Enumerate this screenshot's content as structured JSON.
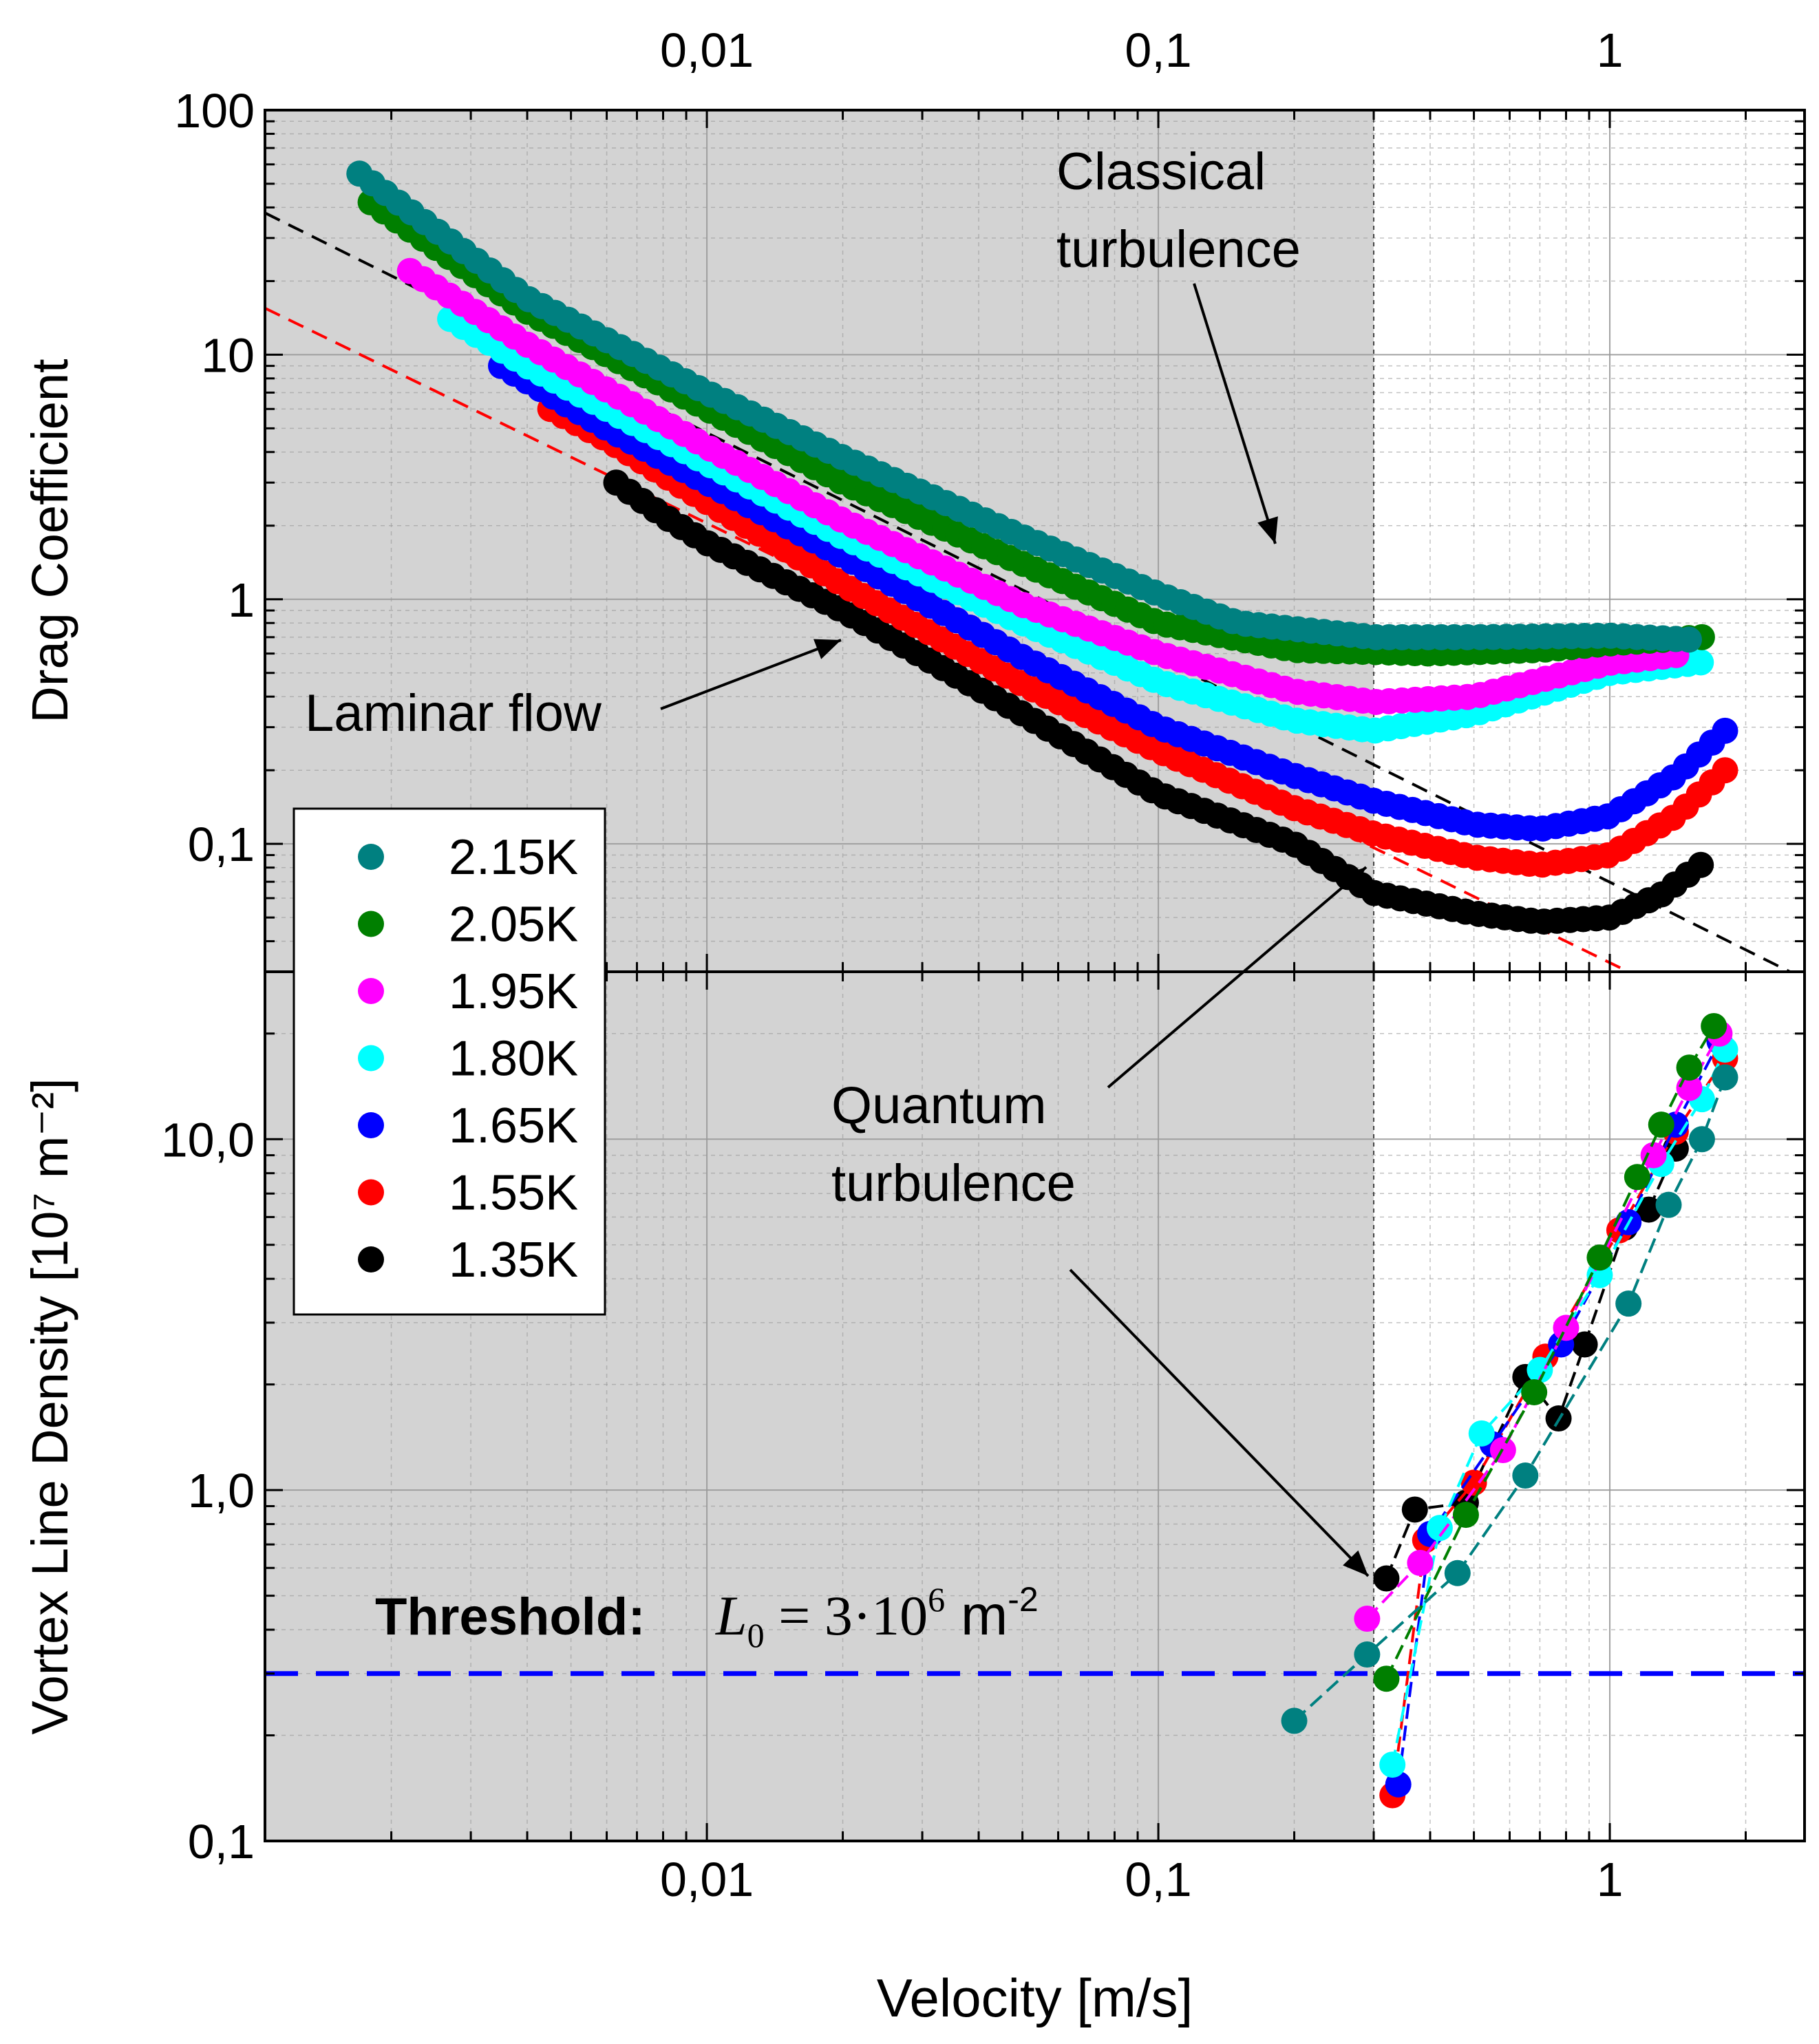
{
  "chart_data": [
    {
      "type": "scatter",
      "panel": "top",
      "ylabel": "Drag Coefficient",
      "xlabel": "",
      "xscale": "log",
      "yscale": "log",
      "xlim": [
        0.00105,
        2.7
      ],
      "ylim": [
        0.03,
        100
      ],
      "x_ticks": [
        {
          "v": 0.01,
          "label": "0,01"
        },
        {
          "v": 0.1,
          "label": "0,1"
        },
        {
          "v": 1,
          "label": "1"
        }
      ],
      "y_ticks": [
        {
          "v": 0.1,
          "label": "0,1"
        },
        {
          "v": 1,
          "label": "1"
        },
        {
          "v": 10,
          "label": "10"
        },
        {
          "v": 100,
          "label": "100"
        }
      ],
      "grid": true,
      "shaded_region_x": [
        0.00105,
        0.3
      ],
      "threshold_velocity": 0.3,
      "fit_lines": [
        {
          "color": "#000000",
          "points": [
            [
              0.00105,
              38
            ],
            [
              2.7,
              0.028
            ]
          ]
        },
        {
          "color": "#ff0000",
          "points": [
            [
              0.00105,
              15.5
            ],
            [
              1.1,
              0.03
            ]
          ]
        }
      ],
      "annotations": [
        {
          "text_lines": [
            "Classical",
            "turbulence"
          ]
        },
        {
          "text_lines": [
            "Laminar flow"
          ]
        }
      ],
      "series": [
        {
          "name": "2.15K",
          "color": "#008080",
          "line_points": [
            [
              0.0017,
              55
            ],
            [
              0.004,
              17
            ],
            [
              0.01,
              7
            ],
            [
              0.02,
              3.8
            ],
            [
              0.05,
              1.8
            ],
            [
              0.1,
              1.05
            ],
            [
              0.15,
              0.8
            ],
            [
              0.3,
              0.7
            ],
            [
              0.5,
              0.7
            ],
            [
              1,
              0.71
            ],
            [
              1.6,
              0.68
            ]
          ]
        },
        {
          "name": "2.05K",
          "color": "#007f00",
          "line_points": [
            [
              0.0018,
              42
            ],
            [
              0.004,
              15
            ],
            [
              0.01,
              6
            ],
            [
              0.02,
              3
            ],
            [
              0.05,
              1.4
            ],
            [
              0.1,
              0.8
            ],
            [
              0.2,
              0.62
            ],
            [
              0.4,
              0.6
            ],
            [
              0.7,
              0.62
            ],
            [
              1,
              0.66
            ],
            [
              1.6,
              0.7
            ]
          ]
        },
        {
          "name": "1.95K",
          "color": "#ff00ff",
          "line_points": [
            [
              0.0022,
              22
            ],
            [
              0.004,
              11
            ],
            [
              0.01,
              4.2
            ],
            [
              0.02,
              2.1
            ],
            [
              0.05,
              0.95
            ],
            [
              0.1,
              0.6
            ],
            [
              0.2,
              0.42
            ],
            [
              0.3,
              0.38
            ],
            [
              0.5,
              0.4
            ],
            [
              1,
              0.55
            ],
            [
              1.5,
              0.6
            ]
          ]
        },
        {
          "name": "1.80K",
          "color": "#00ffff",
          "line_points": [
            [
              0.0027,
              14
            ],
            [
              0.004,
              9
            ],
            [
              0.01,
              3.6
            ],
            [
              0.02,
              1.8
            ],
            [
              0.05,
              0.8
            ],
            [
              0.1,
              0.46
            ],
            [
              0.2,
              0.32
            ],
            [
              0.3,
              0.29
            ],
            [
              0.5,
              0.34
            ],
            [
              1,
              0.5
            ],
            [
              1.7,
              0.56
            ]
          ]
        },
        {
          "name": "1.65K",
          "color": "#0000ff",
          "line_points": [
            [
              0.0035,
              9
            ],
            [
              0.006,
              5
            ],
            [
              0.01,
              3
            ],
            [
              0.02,
              1.5
            ],
            [
              0.05,
              0.58
            ],
            [
              0.1,
              0.3
            ],
            [
              0.2,
              0.19
            ],
            [
              0.3,
              0.15
            ],
            [
              0.5,
              0.12
            ],
            [
              0.7,
              0.115
            ],
            [
              1,
              0.13
            ],
            [
              1.4,
              0.19
            ],
            [
              1.8,
              0.29
            ]
          ]
        },
        {
          "name": "1.55K",
          "color": "#ff0000",
          "line_points": [
            [
              0.0045,
              6
            ],
            [
              0.006,
              4.5
            ],
            [
              0.01,
              2.5
            ],
            [
              0.02,
              1.15
            ],
            [
              0.05,
              0.45
            ],
            [
              0.1,
              0.24
            ],
            [
              0.2,
              0.14
            ],
            [
              0.3,
              0.11
            ],
            [
              0.5,
              0.088
            ],
            [
              0.7,
              0.082
            ],
            [
              1,
              0.09
            ],
            [
              1.4,
              0.13
            ],
            [
              1.8,
              0.2
            ]
          ]
        },
        {
          "name": "1.35K",
          "color": "#000000",
          "line_points": [
            [
              0.0063,
              3
            ],
            [
              0.008,
              2.2
            ],
            [
              0.01,
              1.7
            ],
            [
              0.02,
              0.9
            ],
            [
              0.05,
              0.34
            ],
            [
              0.1,
              0.16
            ],
            [
              0.2,
              0.1
            ],
            [
              0.3,
              0.063
            ],
            [
              0.5,
              0.052
            ],
            [
              0.7,
              0.048
            ],
            [
              1,
              0.05
            ],
            [
              1.3,
              0.062
            ],
            [
              1.7,
              0.09
            ]
          ]
        }
      ]
    },
    {
      "type": "scatter",
      "panel": "bottom",
      "ylabel": "Vortex Line Density [10⁷ m⁻²]",
      "xlabel": "Velocity [m/s]",
      "xscale": "log",
      "yscale": "log",
      "xlim": [
        0.00105,
        2.7
      ],
      "ylim": [
        0.1,
        30
      ],
      "x_ticks": [
        {
          "v": 0.01,
          "label": "0,01"
        },
        {
          "v": 0.1,
          "label": "0,1"
        },
        {
          "v": 1,
          "label": "1"
        }
      ],
      "y_ticks": [
        {
          "v": 0.1,
          "label": "0,1"
        },
        {
          "v": 1,
          "label": "1,0"
        },
        {
          "v": 10,
          "label": "10,0"
        }
      ],
      "grid": true,
      "threshold_line": {
        "y": 0.3,
        "color": "#0000ff"
      },
      "series": [
        {
          "name": "2.15K",
          "color": "#008080",
          "points": [
            [
              0.2,
              0.22
            ],
            [
              0.29,
              0.34
            ],
            [
              0.46,
              0.58
            ],
            [
              0.65,
              1.1
            ],
            [
              1.1,
              3.4
            ],
            [
              1.35,
              6.5
            ],
            [
              1.6,
              10
            ],
            [
              1.8,
              15
            ]
          ]
        },
        {
          "name": "2.05K",
          "color": "#007f00",
          "points": [
            [
              0.32,
              0.29
            ],
            [
              0.48,
              0.85
            ],
            [
              0.68,
              1.9
            ],
            [
              0.95,
              4.6
            ],
            [
              1.15,
              7.8
            ],
            [
              1.3,
              11
            ],
            [
              1.5,
              16
            ],
            [
              1.7,
              21
            ]
          ]
        },
        {
          "name": "1.95K",
          "color": "#ff00ff",
          "points": [
            [
              0.29,
              0.43
            ],
            [
              0.38,
              0.62
            ],
            [
              0.58,
              1.3
            ],
            [
              0.8,
              2.9
            ],
            [
              1.25,
              9
            ],
            [
              1.5,
              14
            ],
            [
              1.75,
              20
            ]
          ]
        },
        {
          "name": "1.80K",
          "color": "#00ffff",
          "points": [
            [
              0.33,
              0.165
            ],
            [
              0.42,
              0.78
            ],
            [
              0.52,
              1.45
            ],
            [
              0.7,
              2.2
            ],
            [
              0.95,
              4.1
            ],
            [
              1.3,
              8.5
            ],
            [
              1.6,
              13
            ],
            [
              1.8,
              18
            ]
          ]
        },
        {
          "name": "1.65K",
          "color": "#0000ff",
          "points": [
            [
              0.34,
              0.145
            ],
            [
              0.4,
              0.75
            ],
            [
              0.55,
              1.35
            ],
            [
              0.78,
              2.6
            ],
            [
              1.1,
              5.8
            ],
            [
              1.4,
              11
            ],
            [
              1.75,
              19
            ]
          ]
        },
        {
          "name": "1.55K",
          "color": "#ff0000",
          "points": [
            [
              0.33,
              0.135
            ],
            [
              0.39,
              0.72
            ],
            [
              0.5,
              1.05
            ],
            [
              0.72,
              2.4
            ],
            [
              1.05,
              5.5
            ],
            [
              1.4,
              10.5
            ],
            [
              1.8,
              17
            ]
          ]
        },
        {
          "name": "1.35K",
          "color": "#000000",
          "points": [
            [
              0.32,
              0.56
            ],
            [
              0.37,
              0.88
            ],
            [
              0.48,
              0.92
            ],
            [
              0.65,
              2.1
            ],
            [
              0.77,
              1.6
            ],
            [
              0.88,
              2.6
            ],
            [
              1.08,
              5.6
            ],
            [
              1.22,
              6.3
            ],
            [
              1.4,
              9.4
            ]
          ]
        }
      ]
    }
  ],
  "top_axis_labels": [
    "0,01",
    "0,1",
    "1"
  ],
  "top_annotations": {
    "classical": [
      "Classical",
      "turbulence"
    ],
    "laminar": "Laminar flow"
  },
  "bottom_annotations": {
    "quantum": [
      "Quantum",
      "turbulence"
    ],
    "threshold_label": "Threshold:",
    "threshold_formula_L": "L",
    "threshold_formula_sub": "0",
    "threshold_formula_eq": "= 3·10",
    "threshold_formula_exp": "6",
    "threshold_formula_unit": "m",
    "threshold_formula_unit_exp": "-2"
  },
  "legend": {
    "placement": "left-middle",
    "entries": [
      {
        "label": "2.15K",
        "color": "#008080"
      },
      {
        "label": "2.05K",
        "color": "#007f00"
      },
      {
        "label": "1.95K",
        "color": "#ff00ff"
      },
      {
        "label": "1.80K",
        "color": "#00ffff"
      },
      {
        "label": "1.65K",
        "color": "#0000ff"
      },
      {
        "label": "1.55K",
        "color": "#ff0000"
      },
      {
        "label": "1.35K",
        "color": "#000000"
      }
    ]
  },
  "colors": {
    "shade": "#d3d3d3",
    "grid": "#9a9a9a",
    "threshold": "#0000ff"
  }
}
